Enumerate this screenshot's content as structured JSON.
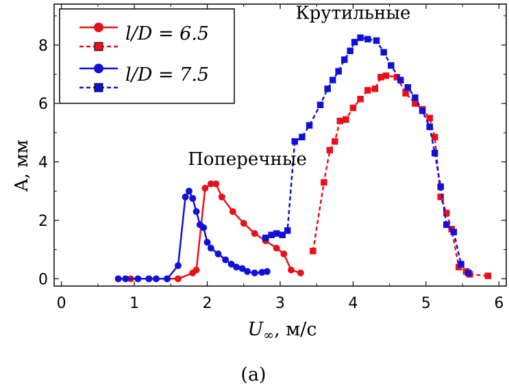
{
  "chart_data": {
    "type": "line",
    "xlabel_symbol": "U",
    "xlabel_sub": "∞",
    "xlabel_unit": ", м/с",
    "ylabel": "A, мм",
    "caption": "(a)",
    "xlim": [
      -0.1,
      6.1
    ],
    "ylim": [
      -0.25,
      9.4
    ],
    "xticks": [
      0,
      1,
      2,
      3,
      4,
      5,
      6
    ],
    "yticks": [
      0,
      2,
      4,
      6,
      8
    ],
    "annotations": [
      {
        "text": "Поперечные",
        "x": 2.55,
        "y": 3.9
      },
      {
        "text": "Крутильные",
        "x": 4.0,
        "y": 8.9
      }
    ],
    "legend": {
      "placement": "top-left",
      "entries": [
        {
          "label": "l/D = 6.5",
          "color": "#e8101a",
          "series": [
            "red-circle",
            "red-square"
          ]
        },
        {
          "label": "l/D = 7.5",
          "color": "#1010d8",
          "series": [
            "blue-circle",
            "blue-square"
          ]
        }
      ]
    },
    "series": [
      {
        "id": "red-circle",
        "color": "#e8101a",
        "marker": "circle",
        "dash": false,
        "x": [
          0.95,
          1.2,
          1.45,
          1.6,
          1.8,
          1.85,
          1.97,
          2.05,
          2.12,
          2.2,
          2.35,
          2.5,
          2.65,
          2.8,
          2.95,
          3.05,
          3.15,
          3.28
        ],
        "y": [
          0.0,
          0.0,
          0.0,
          0.0,
          0.2,
          0.3,
          3.1,
          3.25,
          3.25,
          2.8,
          2.3,
          1.9,
          1.55,
          1.3,
          1.05,
          0.85,
          0.3,
          0.2
        ]
      },
      {
        "id": "red-square",
        "color": "#e8101a",
        "marker": "square",
        "dash": true,
        "x": [
          3.45,
          3.6,
          3.68,
          3.75,
          3.82,
          3.9,
          4.0,
          4.1,
          4.2,
          4.3,
          4.38,
          4.45,
          4.6,
          4.72,
          4.85,
          4.95,
          5.05,
          5.12,
          5.2,
          5.28,
          5.35,
          5.45,
          5.55,
          5.6,
          5.85
        ],
        "y": [
          0.95,
          3.3,
          4.4,
          4.7,
          5.4,
          5.45,
          5.85,
          6.15,
          6.45,
          6.5,
          6.9,
          6.95,
          6.9,
          6.35,
          6.0,
          5.8,
          5.5,
          4.85,
          2.8,
          2.25,
          1.7,
          0.4,
          0.25,
          0.15,
          0.1
        ]
      },
      {
        "id": "blue-circle",
        "color": "#1010d8",
        "marker": "circle",
        "dash": false,
        "x": [
          0.78,
          0.88,
          1.05,
          1.2,
          1.3,
          1.45,
          1.6,
          1.7,
          1.75,
          1.8,
          1.85,
          1.9,
          1.95,
          2.0,
          2.05,
          2.15,
          2.25,
          2.33,
          2.4,
          2.48,
          2.55,
          2.65,
          2.75,
          2.82
        ],
        "y": [
          0.0,
          0.0,
          0.0,
          0.0,
          0.0,
          0.0,
          0.45,
          2.8,
          3.0,
          2.75,
          2.3,
          1.85,
          1.75,
          1.25,
          1.05,
          0.85,
          0.65,
          0.5,
          0.4,
          0.35,
          0.25,
          0.2,
          0.22,
          0.25
        ]
      },
      {
        "id": "blue-square",
        "color": "#1010d8",
        "marker": "square",
        "dash": true,
        "x": [
          2.8,
          2.88,
          2.95,
          3.03,
          3.1,
          3.2,
          3.3,
          3.4,
          3.55,
          3.65,
          3.72,
          3.8,
          3.88,
          3.96,
          4.02,
          4.1,
          4.2,
          4.32,
          4.42,
          4.52,
          4.65,
          4.75,
          4.85,
          4.95,
          5.05,
          5.12,
          5.2,
          5.28,
          5.38,
          5.48,
          5.58
        ],
        "y": [
          1.4,
          1.5,
          1.55,
          1.5,
          1.65,
          4.7,
          4.85,
          5.25,
          5.95,
          6.5,
          6.8,
          7.1,
          7.5,
          7.8,
          8.1,
          8.25,
          8.2,
          8.15,
          7.75,
          7.3,
          6.8,
          6.55,
          6.2,
          5.75,
          5.2,
          4.3,
          3.15,
          1.85,
          1.6,
          0.5,
          0.2
        ]
      }
    ]
  }
}
